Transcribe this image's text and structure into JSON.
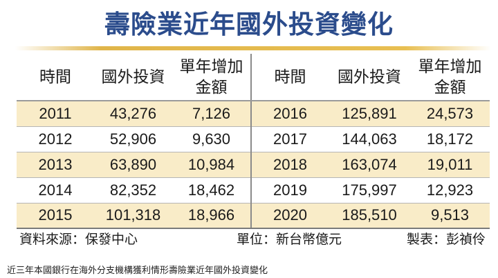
{
  "title": "壽險業近年國外投資變化",
  "table": {
    "headers": {
      "left": {
        "time": "時間",
        "investment": "國外投資",
        "increase_line1": "單年增加",
        "increase_line2": "金額"
      },
      "right": {
        "time": "時間",
        "investment": "國外投資",
        "increase_line1": "單年增加",
        "increase_line2": "金額"
      }
    },
    "rows": [
      {
        "year_a": "2011",
        "inv_a": "43,276",
        "inc_a": "7,126",
        "year_b": "2016",
        "inv_b": "125,891",
        "inc_b": "24,573"
      },
      {
        "year_a": "2012",
        "inv_a": "52,906",
        "inc_a": "9,630",
        "year_b": "2017",
        "inv_b": "144,063",
        "inc_b": "18,172"
      },
      {
        "year_a": "2013",
        "inv_a": "63,890",
        "inc_a": "10,984",
        "year_b": "2018",
        "inv_b": "163,074",
        "inc_b": "19,011"
      },
      {
        "year_a": "2014",
        "inv_a": "82,352",
        "inc_a": "18,462",
        "year_b": "2019",
        "inv_b": "175,997",
        "inc_b": "12,923"
      },
      {
        "year_a": "2015",
        "inv_a": "101,318",
        "inc_a": "18,966",
        "year_b": "2020",
        "inv_b": "185,510",
        "inc_b": "9,513"
      }
    ]
  },
  "footer": {
    "source": "資料來源：保發中心",
    "unit": "單位：新台幣億元",
    "maker": "製表：彭禎伶"
  },
  "caption": "近三年本國銀行在海外分支機構獲利情形壽險業近年國外投資變化",
  "colors": {
    "title": "#2b4c8c",
    "accent_line": "#e8bf52",
    "row_shade": "#f9ecc8"
  }
}
